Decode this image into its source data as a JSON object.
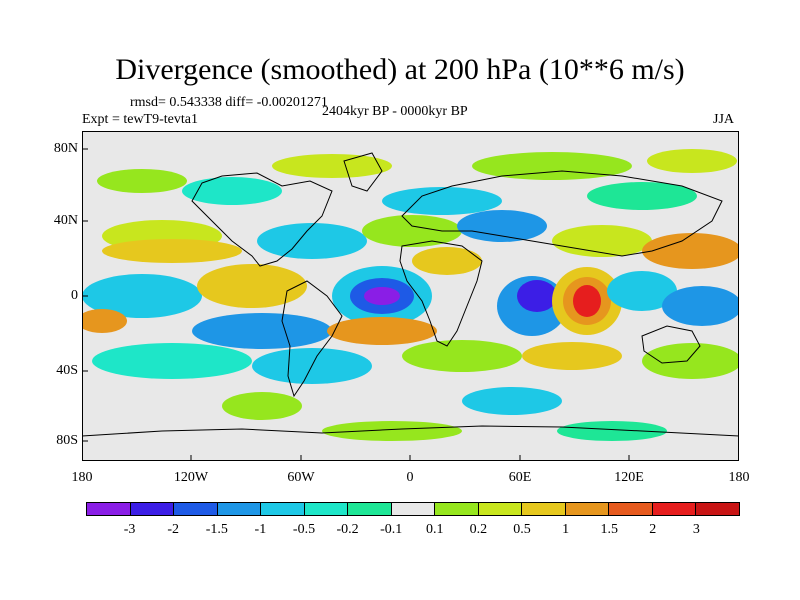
{
  "title": "Divergence (smoothed) at 200 hPa (10**6 m/s)",
  "stats": {
    "rmsd_line": "rmsd= 0.543338 diff= -0.00201271"
  },
  "experiment": "Expt = tewT9-tevta1",
  "period": "2404kyr BP - 0000kyr BP",
  "season": "JJA",
  "lat_labels": [
    "80N",
    "40N",
    "0",
    "40S",
    "80S"
  ],
  "lon_labels": [
    "180",
    "120W",
    "60W",
    "0",
    "60E",
    "120E",
    "180"
  ],
  "colorbar": {
    "labels": [
      "-3",
      "-2",
      "-1.5",
      "-1",
      "-0.5",
      "-0.2",
      "-0.1",
      "0.1",
      "0.2",
      "0.5",
      "1",
      "1.5",
      "2",
      "3"
    ],
    "colors": [
      "#8a1ee6",
      "#3c1ee6",
      "#1e5ae6",
      "#1e96e6",
      "#1ec8e6",
      "#1ee6c8",
      "#1ee696",
      "#e8e8e8",
      "#96e61e",
      "#c8e61e",
      "#e6c81e",
      "#e6961e",
      "#e65a1e",
      "#e61e1e",
      "#c81414"
    ]
  }
}
